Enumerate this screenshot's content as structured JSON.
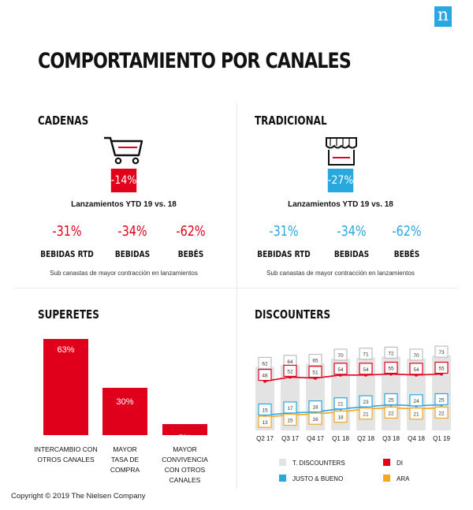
{
  "logo": "n",
  "title": "COMPORTAMIENTO POR CANALES",
  "cadenas": {
    "title": "CADENAS",
    "badge": "-14%",
    "badge_color": "#e0001b",
    "subtitle": "Lanzamientos YTD 19 vs. 18",
    "items": [
      {
        "pct": "-31%",
        "label": "BEBIDAS RTD"
      },
      {
        "pct": "-34%",
        "label": "BEBIDAS"
      },
      {
        "pct": "-62%",
        "label": "BEBÉS"
      }
    ],
    "note": "Sub canastas de mayor contracción en lanzamientos"
  },
  "tradicional": {
    "title": "TRADICIONAL",
    "badge": "-27%",
    "badge_color": "#29a8e0",
    "subtitle": "Lanzamientos YTD 19 vs. 18",
    "items": [
      {
        "pct": "-31%",
        "label": "BEBIDAS RTD"
      },
      {
        "pct": "-34%",
        "label": "BEBIDAS"
      },
      {
        "pct": "-62%",
        "label": "BEBÉS"
      }
    ],
    "note": "Sub canastas de mayor contracción en lanzamientos"
  },
  "superetes": {
    "title": "SUPERETES"
  },
  "discounters": {
    "title": "DISCOUNTERS"
  },
  "copyright": "Copyright  ©  2019  The  Nielsen  Company",
  "chart_data": [
    {
      "type": "bar",
      "categories": [
        [
          "INTERCAMBIO CON",
          "OTROS CANALES"
        ],
        [
          "MAYOR",
          "TASA DE",
          "COMPRA"
        ],
        [
          "MAYOR",
          "CONVIVENCIA",
          "CON OTROS",
          "CANALES"
        ]
      ],
      "values": [
        63,
        30,
        7
      ],
      "value_labels": [
        "63%",
        "30%",
        "7%"
      ],
      "ylim": [
        0,
        70
      ],
      "color": "#e0001b"
    },
    {
      "type": "line",
      "categories": [
        "Q2 17",
        "Q3 17",
        "Q4 17",
        "Q1 18",
        "Q2 18",
        "Q3 18",
        "Q4 18",
        "Q1 19"
      ],
      "ylim": [
        0,
        80
      ],
      "series": [
        {
          "name": "T. DISCOUNTERS",
          "values": [
            62,
            64,
            65,
            70,
            71,
            72,
            70,
            73
          ],
          "color": "#e3e3e3",
          "style": "bar"
        },
        {
          "name": "DI",
          "values": [
            48,
            52,
            51,
            54,
            54,
            55,
            54,
            55
          ],
          "color": "#e0001b",
          "style": "line"
        },
        {
          "name": "JUSTO & BUENO",
          "values": [
            15,
            17,
            18,
            21,
            23,
            25,
            24,
            25
          ],
          "color": "#29a8e0",
          "style": "line"
        },
        {
          "name": "ARA",
          "values": [
            13,
            15,
            16,
            18,
            21,
            22,
            21,
            22
          ],
          "color": "#f5a623",
          "style": "line"
        }
      ],
      "legend": "bottom"
    }
  ]
}
